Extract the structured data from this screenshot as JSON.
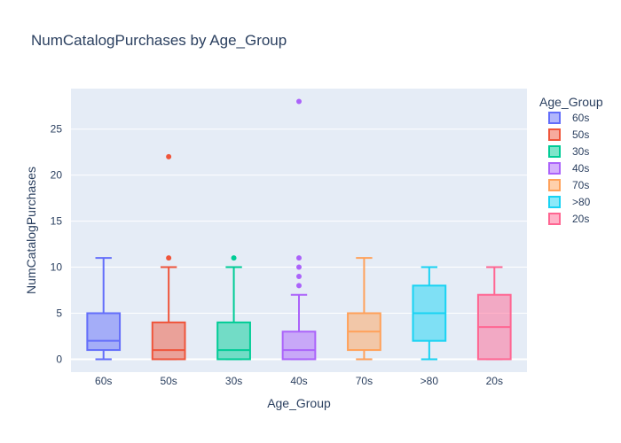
{
  "chart_data": {
    "type": "box",
    "title": "NumCatalogPurchases by Age_Group",
    "xlabel": "Age_Group",
    "ylabel": "NumCatalogPurchases",
    "ylim": [
      -1.4,
      29.4
    ],
    "yticks": [
      0,
      5,
      10,
      15,
      20,
      25
    ],
    "grid": true,
    "legend": {
      "title": "Age_Group",
      "placement": "right"
    },
    "categories": [
      "60s",
      "50s",
      "30s",
      "40s",
      "70s",
      ">80",
      "20s"
    ],
    "series": [
      {
        "name": "60s",
        "color": "#636efa",
        "min": 0,
        "q1": 1,
        "median": 2,
        "q3": 5,
        "max": 11,
        "outliers": []
      },
      {
        "name": "50s",
        "color": "#ef553b",
        "min": 0,
        "q1": 0,
        "median": 1,
        "q3": 4,
        "max": 10,
        "outliers": [
          11,
          22
        ]
      },
      {
        "name": "30s",
        "color": "#00cc96",
        "min": 0,
        "q1": 0,
        "median": 1,
        "q3": 4,
        "max": 10,
        "outliers": [
          11
        ]
      },
      {
        "name": "40s",
        "color": "#ab63fa",
        "min": 0,
        "q1": 0,
        "median": 1,
        "q3": 3,
        "max": 7,
        "outliers": [
          8,
          9,
          10,
          11,
          28
        ]
      },
      {
        "name": "70s",
        "color": "#ffa15a",
        "min": 0,
        "q1": 1,
        "median": 3,
        "q3": 5,
        "max": 11,
        "outliers": []
      },
      {
        "name": ">80",
        "color": "#19d3f3",
        "min": 0,
        "q1": 2,
        "median": 5,
        "q3": 8,
        "max": 10,
        "outliers": []
      },
      {
        "name": "20s",
        "color": "#ff6692",
        "min": 0,
        "q1": 0,
        "median": 3.5,
        "q3": 7,
        "max": 10,
        "outliers": []
      }
    ]
  }
}
